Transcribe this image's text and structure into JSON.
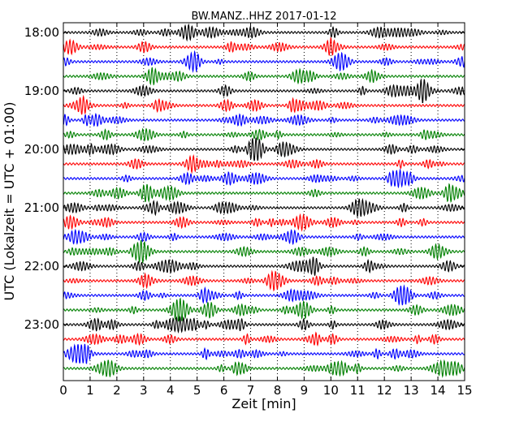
{
  "chart_data": {
    "type": "line",
    "title": "BW.MANZ..HHZ 2017-01-12",
    "xlabel": "Zeit  [min]",
    "ylabel": "UTC (Lokalzeit = UTC + 01:00)",
    "xlim": [
      0,
      15
    ],
    "x_ticks": [
      "0",
      "1",
      "2",
      "3",
      "4",
      "5",
      "6",
      "7",
      "8",
      "9",
      "10",
      "11",
      "12",
      "13",
      "14",
      "15"
    ],
    "y_tick_labels": [
      "18:00",
      "19:00",
      "20:00",
      "21:00",
      "22:00",
      "23:00"
    ],
    "trace_interval_minutes": 15,
    "first_trace_start": "18:00",
    "trace_count": 24,
    "color_cycle": [
      "#000000",
      "#ff0000",
      "#0000ff",
      "#008000"
    ],
    "grid": "vertical dotted at each minute",
    "series": "continuous seismogram traces, one per 15 minute window"
  }
}
